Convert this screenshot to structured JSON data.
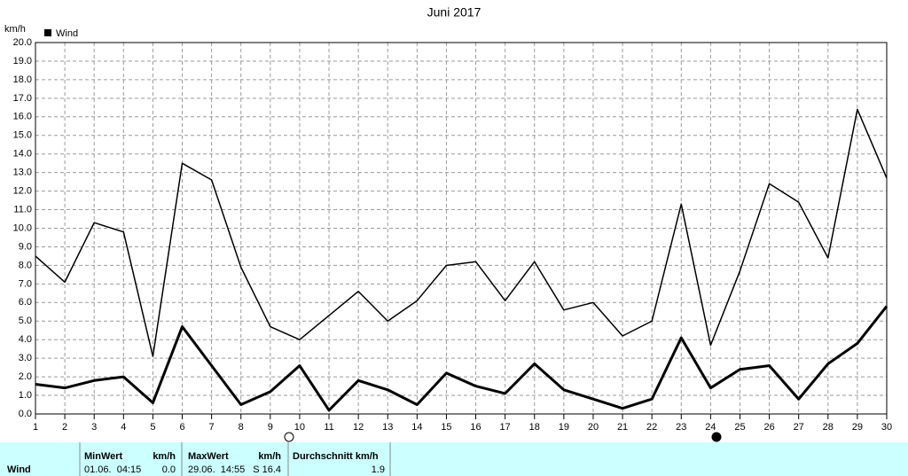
{
  "chart_data": {
    "type": "line",
    "title": "Juni 2017",
    "y_label": "km/h",
    "x": [
      1,
      2,
      3,
      4,
      5,
      6,
      7,
      8,
      9,
      10,
      11,
      12,
      13,
      14,
      15,
      16,
      17,
      18,
      19,
      20,
      21,
      22,
      23,
      24,
      25,
      26,
      27,
      28,
      29,
      30
    ],
    "xlim": [
      1,
      30
    ],
    "xticks": [
      1,
      2,
      3,
      4,
      5,
      6,
      7,
      8,
      9,
      10,
      11,
      12,
      13,
      14,
      15,
      16,
      17,
      18,
      19,
      20,
      21,
      22,
      23,
      24,
      25,
      26,
      27,
      28,
      29,
      30
    ],
    "ylim": [
      0,
      20
    ],
    "yticks": [
      {
        "value": 0,
        "label": "0.0"
      },
      {
        "value": 1,
        "label": "1.0"
      },
      {
        "value": 2,
        "label": "2.0"
      },
      {
        "value": 3,
        "label": "3.0"
      },
      {
        "value": 4,
        "label": "4.0"
      },
      {
        "value": 5,
        "label": "5.0"
      },
      {
        "value": 6,
        "label": "6.0"
      },
      {
        "value": 7,
        "label": "7.0"
      },
      {
        "value": 8,
        "label": "8.0"
      },
      {
        "value": 9,
        "label": "9.0"
      },
      {
        "value": 10,
        "label": "10.0"
      },
      {
        "value": 11,
        "label": "11.0"
      },
      {
        "value": 12,
        "label": "12.0"
      },
      {
        "value": 13,
        "label": "13.0"
      },
      {
        "value": 14,
        "label": "14.0"
      },
      {
        "value": 15,
        "label": "15.0"
      },
      {
        "value": 16,
        "label": "16.0"
      },
      {
        "value": 17,
        "label": "17.0"
      },
      {
        "value": 18,
        "label": "18.0"
      },
      {
        "value": 19,
        "label": "19.0"
      },
      {
        "value": 20,
        "label": "20.0"
      }
    ],
    "grid": true,
    "series": [
      {
        "name": "Wind",
        "color": "#000000",
        "values": [
          1.6,
          1.4,
          1.8,
          2.0,
          0.6,
          4.7,
          2.6,
          0.5,
          1.2,
          2.6,
          0.2,
          1.8,
          1.3,
          0.5,
          2.2,
          1.5,
          1.1,
          2.7,
          1.3,
          0.8,
          0.3,
          0.8,
          4.1,
          1.4,
          2.4,
          2.6,
          0.8,
          2.7,
          3.8,
          5.8
        ]
      },
      {
        "color": "#000000",
        "values": [
          8.5,
          7.1,
          10.3,
          9.8,
          3.1,
          13.5,
          12.6,
          7.9,
          4.7,
          4.0,
          5.3,
          6.6,
          5.0,
          6.1,
          8.0,
          8.2,
          6.1,
          8.2,
          5.6,
          6.0,
          4.2,
          5.0,
          11.3,
          3.7,
          7.7,
          12.4,
          11.4,
          8.4,
          16.4,
          12.7
        ]
      }
    ]
  },
  "table": {
    "row_label": "Wind",
    "columns": [
      {
        "header": "MinWert",
        "unit": "km/h",
        "time": "01.06.  04:15",
        "value": "0.0"
      },
      {
        "header": "MaxWert",
        "unit": "km/h",
        "time": "29.06.  14:55",
        "value": "S 16.4"
      },
      {
        "header": "Durchschnitt km/h",
        "value": "1.9"
      }
    ]
  }
}
